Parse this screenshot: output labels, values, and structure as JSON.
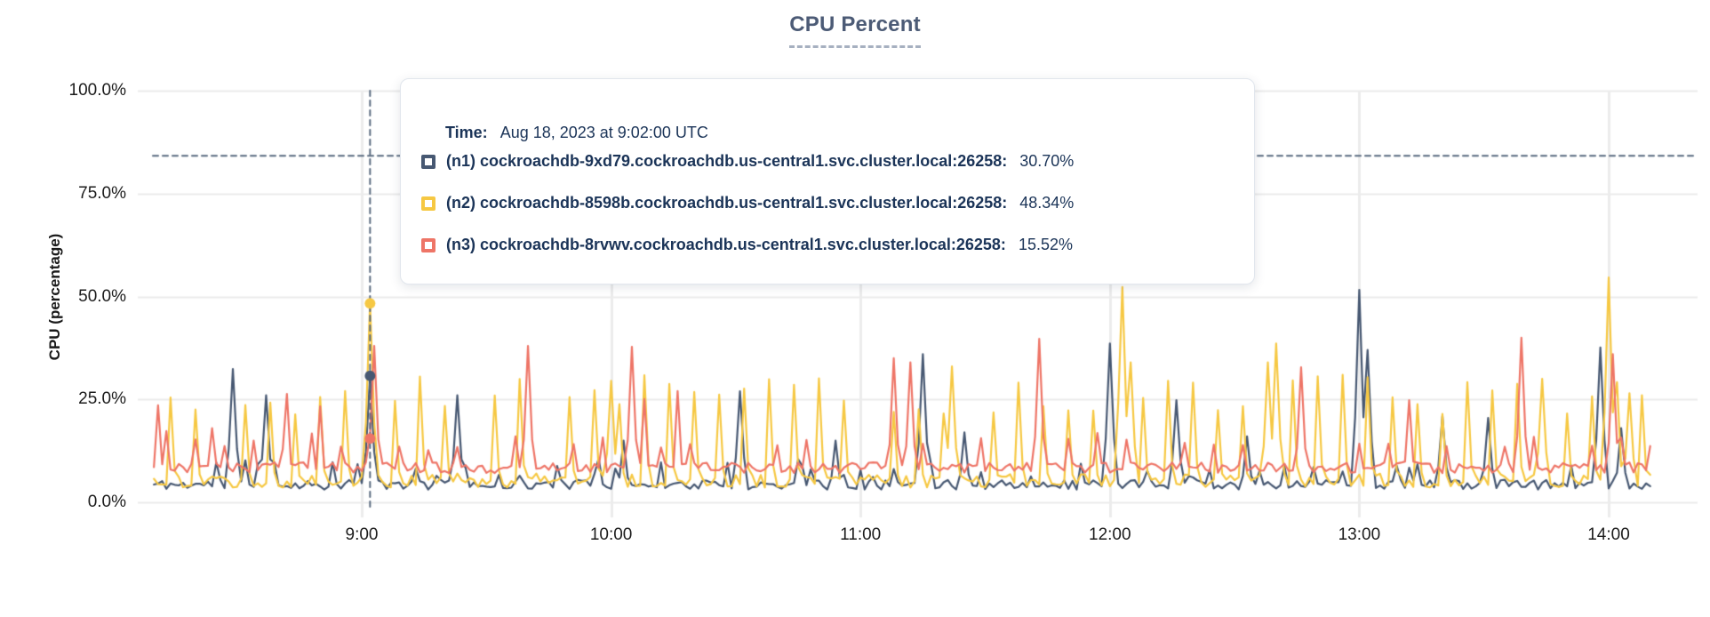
{
  "title": "CPU Percent",
  "colors": {
    "accent_title": "#4c5b76",
    "grid_horizontal": "#ebebeb",
    "grid_vertical": "#ececec",
    "crosshair": "#5a6b80",
    "series_n1": "#475872",
    "series_n2": "#f6c843",
    "series_n3": "#ee7567",
    "tooltip_text": "#1b3458"
  },
  "tooltip": {
    "time_label": "Time:",
    "time_value": "Aug 18, 2023 at 9:02:00 UTC",
    "rows": [
      {
        "label": "(n1) cockroachdb-9xd79.cockroachdb.us-central1.svc.cluster.local:26258:",
        "value": "30.70%",
        "color": "#475872"
      },
      {
        "label": "(n2) cockroachdb-8598b.cockroachdb.us-central1.svc.cluster.local:26258:",
        "value": "48.34%",
        "color": "#f6c843"
      },
      {
        "label": "(n3) cockroachdb-8rvwv.cockroachdb.us-central1.svc.cluster.local:26258:",
        "value": "15.52%",
        "color": "#ee7567"
      }
    ]
  },
  "chart_data": {
    "type": "line",
    "title": "CPU Percent",
    "xlabel": "",
    "ylabel": "CPU (percentage)",
    "ylim": [
      0,
      100
    ],
    "grid": true,
    "y_ticks": [
      {
        "label": "100.0%",
        "value": 100
      },
      {
        "label": "75.0%",
        "value": 75
      },
      {
        "label": "50.0%",
        "value": 50
      },
      {
        "label": "25.0%",
        "value": 25
      },
      {
        "label": "0.0%",
        "value": 0
      }
    ],
    "x_ticks": [
      {
        "label": "9:00",
        "minute": 540
      },
      {
        "label": "10:00",
        "minute": 600
      },
      {
        "label": "11:00",
        "minute": 660
      },
      {
        "label": "12:00",
        "minute": 720
      },
      {
        "label": "13:00",
        "minute": 780
      },
      {
        "label": "14:00",
        "minute": 840
      }
    ],
    "x_range_minutes": [
      490,
      850
    ],
    "x_range_time": [
      "8:10",
      "14:10"
    ],
    "sample_interval_minutes": 1,
    "hover_point": {
      "time_label": "9:02",
      "time_minute": 542,
      "cursor_pct_y": 84.2
    },
    "series": [
      {
        "name": "(n1) cockroachdb-9xd79.cockroachdb.us-central1.svc.cluster.local:26258",
        "color": "#475872",
        "hover_value": 30.7,
        "baseline": 4.3,
        "noise": 1.2,
        "bump_prob": 0.1,
        "bump_range": [
          6,
          11
        ],
        "seed": 11,
        "spikes": [
          [
            "8:29",
            32.4
          ],
          [
            "8:37",
            26.0
          ],
          [
            "9:02",
            30.7
          ],
          [
            "9:23",
            26.0
          ],
          [
            "10:03",
            15.0
          ],
          [
            "10:31",
            27.0
          ],
          [
            "10:54",
            15.0
          ],
          [
            "11:15",
            36.0
          ],
          [
            "11:25",
            17.0
          ],
          [
            "12:00",
            38.6
          ],
          [
            "12:16",
            24.8
          ],
          [
            "12:33",
            16.0
          ],
          [
            "13:00",
            51.6
          ],
          [
            "13:02",
            37.0
          ],
          [
            "13:20",
            21.0
          ],
          [
            "13:31",
            20.5
          ],
          [
            "13:58",
            37.6
          ],
          [
            "14:03",
            18.0
          ]
        ]
      },
      {
        "name": "(n2) cockroachdb-8598b.cockroachdb.us-central1.svc.cluster.local:26258",
        "color": "#f6c843",
        "hover_value": 48.34,
        "baseline": 5.3,
        "noise": 1.7,
        "period": 6,
        "phase": 2,
        "skip": 0.12,
        "spike_range": [
          21,
          31
        ],
        "seed": 22,
        "spikes": [
          [
            "9:02",
            48.34
          ],
          [
            "10:00",
            29.5
          ],
          [
            "11:22",
            33.0
          ],
          [
            "12:03",
            52.3
          ],
          [
            "12:05",
            34.0
          ],
          [
            "12:38",
            34.0
          ],
          [
            "12:40",
            38.6
          ],
          [
            "13:44",
            30.0
          ],
          [
            "14:00",
            54.6
          ],
          [
            "14:05",
            26.5
          ]
        ]
      },
      {
        "name": "(n3) cockroachdb-8rvwv.cockroachdb.us-central1.svc.cluster.local:26258",
        "color": "#ee7567",
        "hover_value": 15.52,
        "baseline": 8.4,
        "noise": 1.3,
        "period": 7,
        "phase": 4,
        "skip": 0.25,
        "spike_range": [
          12.5,
          17.5
        ],
        "bump_prob": 0.02,
        "bump_range": [
          20,
          28
        ],
        "seed": 33,
        "spikes": [
          [
            "8:24",
            18.0
          ],
          [
            "9:03",
            38.0
          ],
          [
            "9:40",
            38.0
          ],
          [
            "10:05",
            37.8
          ],
          [
            "11:08",
            35.0
          ],
          [
            "11:12",
            34.0
          ],
          [
            "11:43",
            39.7
          ],
          [
            "12:46",
            32.8
          ],
          [
            "13:12",
            24.8
          ],
          [
            "13:39",
            40.0
          ],
          [
            "14:01",
            36.0
          ]
        ]
      }
    ]
  }
}
